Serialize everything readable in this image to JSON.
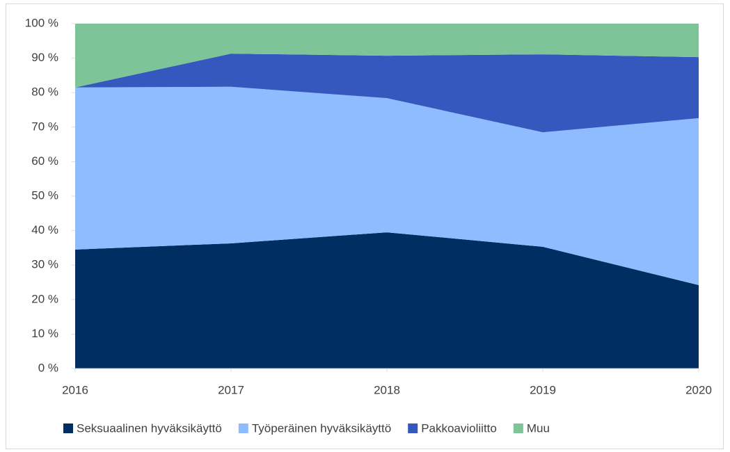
{
  "chart_data": {
    "type": "stacked_area",
    "x": [
      2016,
      2017,
      2018,
      2019,
      2020
    ],
    "xlim": [
      2016,
      2020
    ],
    "xticks": [
      2016,
      2017,
      2018,
      2019,
      2020
    ],
    "ylim": [
      0,
      100
    ],
    "yticks": [
      {
        "value": 0,
        "label": "0 %"
      },
      {
        "value": 10,
        "label": "10 %"
      },
      {
        "value": 20,
        "label": "20 %"
      },
      {
        "value": 30,
        "label": "30 %"
      },
      {
        "value": 40,
        "label": "40 %"
      },
      {
        "value": 50,
        "label": "50 %"
      },
      {
        "value": 60,
        "label": "60 %"
      },
      {
        "value": 70,
        "label": "70 %"
      },
      {
        "value": 80,
        "label": "80 %"
      },
      {
        "value": 90,
        "label": "90 %"
      },
      {
        "value": 100,
        "label": "100 %"
      }
    ],
    "series": [
      {
        "name": "Seksuaalinen hyväksikäyttö",
        "color": "#002d62",
        "values": [
          34.5,
          36.3,
          39.5,
          35.3,
          24.2
        ]
      },
      {
        "name": "Työperäinen hyväksikäyttö",
        "color": "#8fbcff",
        "values": [
          47.0,
          45.4,
          38.9,
          33.2,
          48.4
        ]
      },
      {
        "name": "Pakkoavioliitto",
        "color": "#3558bf",
        "values": [
          0,
          9.6,
          12.3,
          22.6,
          17.7
        ]
      },
      {
        "name": "Muu",
        "color": "#7dc598",
        "values": [
          18.5,
          8.7,
          9.3,
          8.9,
          9.7
        ]
      }
    ],
    "legend": "bottom"
  }
}
